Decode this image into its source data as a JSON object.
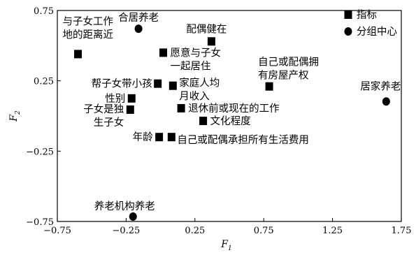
{
  "chart_data": {
    "type": "scatter",
    "title": "",
    "xlabel": "F",
    "xlabel_sub": "1",
    "ylabel": "F",
    "ylabel_sub": "2",
    "xlim": [
      -0.75,
      1.75
    ],
    "ylim": [
      -0.75,
      0.75
    ],
    "x_ticks": [
      -0.75,
      -0.25,
      0.25,
      0.75,
      1.25,
      1.75
    ],
    "x_tick_labels": [
      "−0.75",
      "−0.25",
      "0.25",
      "0.75",
      "1.25",
      "1.75"
    ],
    "y_ticks": [
      -0.75,
      -0.25,
      0.25,
      0.75
    ],
    "y_tick_labels": [
      "−0.75",
      "−0.25",
      "0.25",
      "0.75"
    ],
    "grid": false,
    "legend": {
      "placement": "top-right",
      "entries": [
        {
          "label": "指标",
          "marker": "square"
        },
        {
          "label": "分组中心",
          "marker": "circle"
        }
      ]
    },
    "series": [
      {
        "name": "指标",
        "marker": "square",
        "points": [
          {
            "x": -0.6,
            "y": 0.44,
            "label": [
              "与子女工作",
              "地的距离近"
            ]
          },
          {
            "x": 0.37,
            "y": 0.53,
            "label": [
              "配偶健在"
            ]
          },
          {
            "x": 0.02,
            "y": 0.45,
            "label": [
              "愿意与子女",
              "一起居住"
            ]
          },
          {
            "x": -0.02,
            "y": 0.23,
            "label": [
              "帮子女带小孩"
            ]
          },
          {
            "x": 0.09,
            "y": 0.215,
            "label": [
              "家庭人均",
              "月收入"
            ]
          },
          {
            "x": 0.79,
            "y": 0.21,
            "label": [
              "自己或配偶拥",
              "有房屋产权"
            ]
          },
          {
            "x": -0.21,
            "y": 0.125,
            "label": [
              "性别"
            ]
          },
          {
            "x": -0.22,
            "y": 0.045,
            "label": [
              "子女是独",
              "生子女"
            ]
          },
          {
            "x": 0.15,
            "y": 0.055,
            "label": [
              "退休前或现在的工作"
            ]
          },
          {
            "x": 0.31,
            "y": -0.035,
            "label": [
              "文化程度"
            ]
          },
          {
            "x": -0.01,
            "y": -0.15,
            "label": [
              "年龄"
            ]
          },
          {
            "x": 0.08,
            "y": -0.15,
            "label": [
              "自己或配偶承担所有生活费用"
            ]
          }
        ]
      },
      {
        "name": "分组中心",
        "marker": "circle",
        "points": [
          {
            "x": -0.16,
            "y": 0.62,
            "label": [
              "合居养老"
            ]
          },
          {
            "x": 1.64,
            "y": 0.103,
            "label": [
              "居家养老"
            ]
          },
          {
            "x": -0.2,
            "y": -0.715,
            "label": [
              "养老机构养老"
            ]
          }
        ]
      }
    ]
  }
}
